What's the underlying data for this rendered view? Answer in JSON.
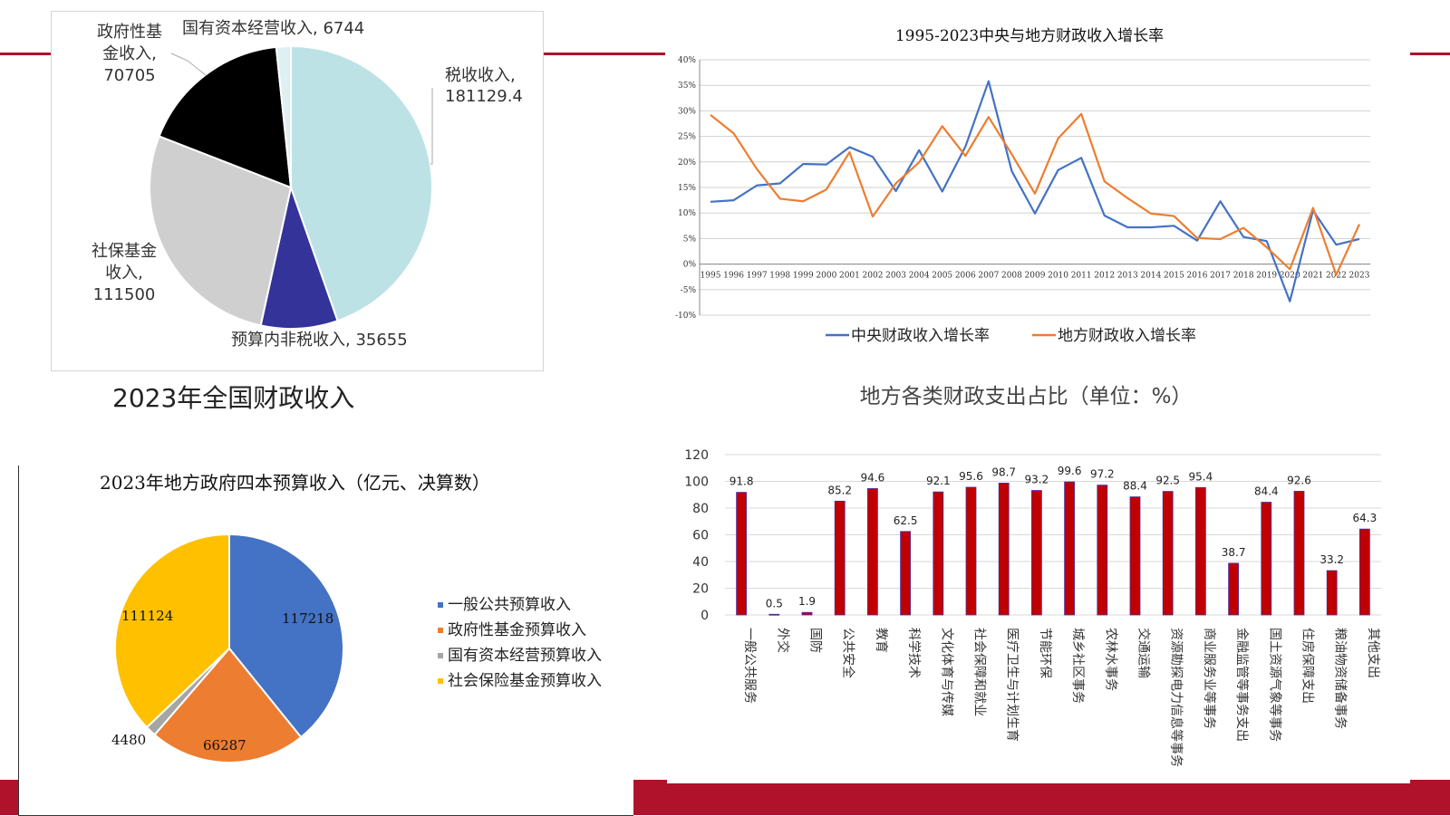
{
  "colors": {
    "accent_red": "#b0122b",
    "blue": "#4472c4",
    "orange": "#ed7d31",
    "gray": "#a5a5a5",
    "yellow": "#ffc000",
    "bar": "#c00000"
  },
  "pie_national": {
    "caption": "2023年全国财政收入",
    "slices": [
      {
        "label": "税收收入, 181129.4",
        "value": 181129.4,
        "color": "#bde2e5"
      },
      {
        "label": "预算内非税收入, 35655",
        "value": 35655,
        "color": "#333399"
      },
      {
        "label": "社保基金收入, 111500",
        "value": 111500,
        "color": "#d0cfd0"
      },
      {
        "label": "政府性基金收入, 70705",
        "value": 70705,
        "color": "#000000"
      },
      {
        "label": "国有资本经营收入, 6744",
        "value": 6744,
        "color": "#dff0f2"
      }
    ],
    "labels": {
      "tax": [
        "税收收入,",
        "181129.4"
      ],
      "nontax": "预算内非税收入, 35655",
      "social": [
        "社保基金",
        "收入,",
        "111500"
      ],
      "fund": [
        "政府性基",
        "金收入,",
        "70705"
      ],
      "state": "国有资本经营收入, 6744"
    }
  },
  "chart_data": [
    {
      "type": "line",
      "title": "1995-2023中央与地方财政收入增长率",
      "x": [
        "1995",
        "1996",
        "1997",
        "1998",
        "1999",
        "2000",
        "2001",
        "2002",
        "2003",
        "2004",
        "2005",
        "2006",
        "2007",
        "2008",
        "2009",
        "2010",
        "2011",
        "2012",
        "2013",
        "2014",
        "2015",
        "2016",
        "2017",
        "2018",
        "2019",
        "2020",
        "2021",
        "2022",
        "2023"
      ],
      "ylim": [
        -10,
        40
      ],
      "yticks": [
        "-10%",
        "-5%",
        "0%",
        "5%",
        "10%",
        "15%",
        "20%",
        "25%",
        "30%",
        "35%",
        "40%"
      ],
      "legend_position": "bottom",
      "series": [
        {
          "name": "中央财政收入增长率",
          "color": "#4472c4",
          "values": [
            12.2,
            12.5,
            15.4,
            15.8,
            19.6,
            19.5,
            22.9,
            21.0,
            14.3,
            22.3,
            14.2,
            23.0,
            35.8,
            18.2,
            9.9,
            18.4,
            20.8,
            9.5,
            7.2,
            7.2,
            7.5,
            4.6,
            12.3,
            5.3,
            4.5,
            -7.3,
            10.5,
            3.8,
            4.9
          ]
        },
        {
          "name": "地方财政收入增长率",
          "color": "#ed7d31",
          "values": [
            29.2,
            25.6,
            18.6,
            12.8,
            12.3,
            14.6,
            21.9,
            9.3,
            15.8,
            19.9,
            27.0,
            21.2,
            28.8,
            21.5,
            13.8,
            24.6,
            29.4,
            16.2,
            12.9,
            9.9,
            9.4,
            5.1,
            4.9,
            7.1,
            3.3,
            -1.0,
            11.0,
            -2.1,
            7.8
          ]
        }
      ]
    },
    {
      "type": "pie",
      "title": "2023年地方政府四本预算收入（亿元、决算数）",
      "legend_position": "right",
      "slices": [
        {
          "name": "一般公共预算收入",
          "value": 117218,
          "label": "117218",
          "color": "#4472c4"
        },
        {
          "name": "政府性基金预算收入",
          "value": 66287,
          "label": "66287",
          "color": "#ed7d31"
        },
        {
          "name": "国有资本经营预算收入",
          "value": 4480,
          "label": "4480",
          "color": "#a5a5a5"
        },
        {
          "name": "社会保险基金预算收入",
          "value": 111124,
          "label": "111124",
          "color": "#ffc000"
        }
      ]
    },
    {
      "type": "bar",
      "title": "地方各类财政支出占比（单位：%）",
      "categories": [
        "一般公共服务",
        "外交",
        "国防",
        "公共安全",
        "教育",
        "科学技术",
        "文化体育与传媒",
        "社会保障和就业",
        "医疗卫生与计划生育",
        "节能环保",
        "城乡社区事务",
        "农林水事务",
        "交通运输",
        "资源勘探电力信息等事务",
        "商业服务业等事务",
        "金融监管等事务支出",
        "国土资源气象等事务",
        "住房保障支出",
        "粮油物资储备事务",
        "其他支出"
      ],
      "values": [
        91.8,
        0.5,
        1.9,
        85.2,
        94.6,
        62.5,
        92.1,
        95.6,
        98.7,
        93.2,
        99.6,
        97.2,
        88.4,
        92.5,
        95.4,
        38.7,
        84.4,
        92.6,
        33.2,
        64.3
      ],
      "value_labels": [
        "91.8",
        "0.5",
        "1.9",
        "85.2",
        "94.6",
        "62.5",
        "92.1",
        "95.6",
        "98.7",
        "93.2",
        "99.6",
        "97.2",
        "88.4",
        "92.5",
        "95.4",
        "38.7",
        "84.4",
        "92.6",
        "33.2",
        "64.3"
      ],
      "ylim": [
        0,
        120
      ],
      "yticks": [
        "0",
        "20",
        "40",
        "60",
        "80",
        "100",
        "120"
      ],
      "color": "#c00000"
    }
  ]
}
